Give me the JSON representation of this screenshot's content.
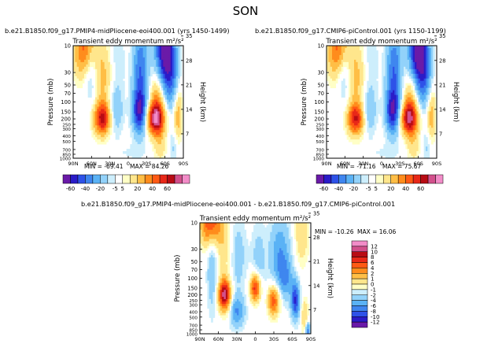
{
  "page_title": "SON",
  "colors": {
    "palette": [
      "#6a1aa8",
      "#2a1cc8",
      "#2e52e8",
      "#3f86ef",
      "#5ab2f5",
      "#92d2fa",
      "#cdeefc",
      "#ffffff",
      "#ffffc6",
      "#ffe68c",
      "#ffbe46",
      "#ff8c1c",
      "#ff5a14",
      "#e82818",
      "#b80c14",
      "#d2508c",
      "#f28cc8"
    ]
  },
  "chart_data": [
    {
      "type": "heatmap",
      "panel": "top-left",
      "title": "b.e21.B1850.f09_g17.PMIP4-midPliocene-eoi400.001  (yrs 1450-1499)",
      "field_label": "Transient eddy momentum",
      "units": "m²/s²",
      "xlabel": "",
      "ylabel": "Pressure (mb)",
      "ylabel_right": "Height (km)",
      "x_tick_labels": [
        "90N",
        "60N",
        "30N",
        "0",
        "30S",
        "60S",
        "90S"
      ],
      "y_tick_labels": [
        "10",
        "30",
        "50",
        "70",
        "100",
        "150",
        "200",
        "250",
        "300",
        "400",
        "500",
        "700",
        "850",
        "1000"
      ],
      "height_tick_labels": [
        "35",
        "28",
        "21",
        "14",
        "7"
      ],
      "stats": {
        "min_label": "MIN = -69.41",
        "max_label": "MAX = 84.26",
        "min": -69.41,
        "max": 84.26
      },
      "features": [
        {
          "label": "tropospheric jet max",
          "lat": -45,
          "p": 200,
          "value": 84.26
        },
        {
          "label": "tropospheric jet max",
          "lat": 42,
          "p": 200,
          "value": 60
        },
        {
          "label": "subtropical min",
          "lat": 20,
          "p": 150,
          "value": -20
        },
        {
          "label": "subtropical min",
          "lat": -18,
          "p": 150,
          "value": -40
        },
        {
          "label": "stratospheric min",
          "lat": -60,
          "p": 10,
          "value": -69.41
        }
      ]
    },
    {
      "type": "heatmap",
      "panel": "top-right",
      "title": "b.e21.B1850.f09_g17.CMIP6-piControl.001  (yrs 1150-1199)",
      "field_label": "Transient eddy momentum",
      "units": "m²/s²",
      "xlabel": "",
      "ylabel": "Pressure (mb)",
      "ylabel_right": "Height (km)",
      "x_tick_labels": [
        "90N",
        "60N",
        "30N",
        "0",
        "30S",
        "60S",
        "90S"
      ],
      "y_tick_labels": [
        "10",
        "30",
        "50",
        "70",
        "100",
        "150",
        "200",
        "250",
        "300",
        "400",
        "500",
        "700",
        "850",
        "1000"
      ],
      "height_tick_labels": [
        "35",
        "28",
        "21",
        "14",
        "7"
      ],
      "stats": {
        "min_label": "MIN = -71.16",
        "max_label": "MAX = 75.67",
        "min": -71.16,
        "max": 75.67
      },
      "features": [
        {
          "label": "tropospheric jet max",
          "lat": -45,
          "p": 200,
          "value": 75.67
        },
        {
          "label": "tropospheric jet max",
          "lat": 42,
          "p": 200,
          "value": 55
        },
        {
          "label": "subtropical min",
          "lat": 20,
          "p": 150,
          "value": -20
        },
        {
          "label": "subtropical min",
          "lat": -18,
          "p": 150,
          "value": -40
        },
        {
          "label": "stratospheric min",
          "lat": -60,
          "p": 10,
          "value": -71.16
        }
      ]
    },
    {
      "type": "heatmap",
      "panel": "bottom-difference",
      "title": "b.e21.B1850.f09_g17.PMIP4-midPliocene-eoi400.001  -  b.e21.B1850.f09_g17.CMIP6-piControl.001",
      "field_label": "Transient eddy momentum",
      "units": "m²/s²",
      "xlabel": "",
      "ylabel": "Pressure (mb)",
      "ylabel_right": "Height (km)",
      "x_tick_labels": [
        "90N",
        "60N",
        "30N",
        "0",
        "30S",
        "60S",
        "90S"
      ],
      "y_tick_labels": [
        "10",
        "30",
        "50",
        "70",
        "100",
        "150",
        "200",
        "250",
        "300",
        "400",
        "500",
        "700",
        "850",
        "1000"
      ],
      "height_tick_labels": [
        "35",
        "28",
        "21",
        "14",
        "7"
      ],
      "stats": {
        "min_label": "MIN = -10.26",
        "max_label": "MAX = 16.06",
        "min": -10.26,
        "max": 16.06
      },
      "features": [
        {
          "label": "stratospheric max",
          "lat": 72,
          "p": 10,
          "value": 12
        },
        {
          "label": "max",
          "lat": 50,
          "p": 200,
          "value": 16.06
        },
        {
          "label": "max",
          "lat": 0,
          "p": 150,
          "value": 12
        },
        {
          "label": "max",
          "lat": -30,
          "p": 250,
          "value": 10
        },
        {
          "label": "min",
          "lat": -65,
          "p": 250,
          "value": -10.26
        },
        {
          "label": "min",
          "lat": 25,
          "p": 400,
          "value": -6
        }
      ]
    }
  ],
  "colorbars": {
    "top_left": {
      "labels": [
        "-60",
        "-40",
        "-20",
        "-5",
        "5",
        "20",
        "40",
        "60"
      ]
    },
    "top_right": {
      "labels": [
        "-60",
        "-40",
        "-20",
        "-5",
        "5",
        "20",
        "40",
        "60"
      ]
    },
    "bottom": {
      "labels": [
        "12",
        "10",
        "8",
        "6",
        "4",
        "2",
        "1",
        "0",
        "-1",
        "-2",
        "-4",
        "-6",
        "-8",
        "-10",
        "-12"
      ]
    }
  }
}
